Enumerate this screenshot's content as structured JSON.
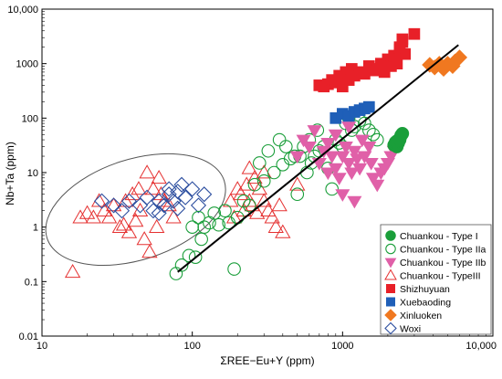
{
  "chart_data": {
    "type": "scatter",
    "xscale": "log",
    "yscale": "log",
    "xlim": [
      10,
      10000
    ],
    "ylim": [
      0.01,
      10000
    ],
    "xlabel": "ΣREE−Eu+Y (ppm)",
    "ylabel": "Nb+Ta (ppm)",
    "x_ticks": [
      "10",
      "100",
      "1000",
      "10,000"
    ],
    "y_ticks": [
      "0.01",
      "0.1",
      "1",
      "10",
      "100",
      "1000",
      "10,000"
    ],
    "grid": false,
    "legend_position": "bottom-right",
    "trend_line": {
      "x": [
        80,
        5900
      ],
      "y": [
        0.15,
        2200
      ],
      "color": "#000000"
    },
    "ellipse": {
      "label": "",
      "center": [
        42,
        2.1
      ],
      "color": "#555555"
    },
    "series": [
      {
        "name": "Chuankou - Type I",
        "marker": "circle-filled",
        "color": "#1a9e3a",
        "x": [
          2200,
          2300,
          2350,
          2400,
          2450,
          2500,
          2300,
          2250,
          2400
        ],
        "y": [
          32,
          38,
          35,
          42,
          48,
          52,
          30,
          36,
          40
        ]
      },
      {
        "name": "Chuankou - Type IIa",
        "marker": "circle-open",
        "color": "#1a9e3a",
        "x": [
          78,
          85,
          95,
          100,
          105,
          110,
          115,
          120,
          130,
          140,
          150,
          165,
          175,
          190,
          200,
          220,
          240,
          260,
          280,
          300,
          320,
          350,
          380,
          400,
          420,
          450,
          480,
          500,
          520,
          550,
          580,
          600,
          620,
          650,
          680,
          700,
          750,
          800,
          850,
          900,
          950,
          1000,
          1050,
          1100,
          1150,
          1200,
          1300,
          1400,
          1500,
          1600,
          1700
        ],
        "y": [
          0.14,
          0.2,
          0.3,
          1.0,
          0.28,
          1.5,
          0.6,
          1.0,
          1.2,
          1.8,
          1.1,
          2.0,
          1.2,
          0.17,
          1.5,
          3.0,
          2.5,
          6.0,
          15,
          7.0,
          25,
          10,
          40,
          14,
          30,
          18,
          20,
          4.0,
          20,
          30,
          10,
          40,
          15,
          20,
          60,
          25,
          30,
          12,
          5.0,
          40,
          35,
          30,
          80,
          100,
          60,
          70,
          90,
          80,
          60,
          50,
          40
        ]
      },
      {
        "name": "Chuankou - Type IIb",
        "marker": "triangle-down-filled",
        "color": "#e060a8",
        "x": [
          500,
          550,
          600,
          650,
          700,
          750,
          800,
          850,
          900,
          950,
          1000,
          1050,
          1100,
          1150,
          1200,
          1250,
          1300,
          1350,
          1400,
          1500,
          1550,
          1600,
          1700,
          1800,
          1900,
          2000,
          2100,
          2200,
          1000,
          1200,
          900,
          1100,
          800
        ],
        "y": [
          20,
          40,
          30,
          60,
          15,
          25,
          10,
          20,
          12,
          8,
          20,
          30,
          15,
          10,
          25,
          18,
          12,
          40,
          20,
          30,
          15,
          8,
          6,
          10,
          12,
          15,
          20,
          25,
          4,
          3,
          50,
          70,
          35
        ]
      },
      {
        "name": "Chuankou - TypeIII",
        "marker": "triangle-up-open",
        "color": "#e53030",
        "x": [
          16,
          18,
          20,
          22,
          24,
          26,
          28,
          30,
          33,
          36,
          40,
          42,
          45,
          50,
          55,
          60,
          62,
          65,
          70,
          75,
          48,
          52,
          58,
          38,
          44,
          35,
          180,
          190,
          200,
          210,
          220,
          230,
          240,
          250,
          260,
          270,
          280,
          300,
          320,
          340,
          360,
          380,
          400,
          240,
          300,
          500
        ],
        "y": [
          0.15,
          1.5,
          1.8,
          1.5,
          3.0,
          2.0,
          1.5,
          2.5,
          1.0,
          3.0,
          4.0,
          1.3,
          2.0,
          10,
          5.0,
          8.0,
          4.0,
          3.0,
          2.5,
          1.5,
          0.6,
          0.35,
          1.0,
          0.8,
          5.0,
          1.1,
          3.0,
          1.5,
          5.0,
          4.0,
          2.0,
          6.0,
          3.0,
          2.5,
          8.0,
          1.8,
          5.0,
          3.0,
          2.0,
          1.5,
          1.0,
          2.5,
          0.8,
          12,
          10,
          6.0
        ]
      },
      {
        "name": "Shizhuyuan",
        "marker": "square-filled",
        "color": "#e82028",
        "x": [
          700,
          750,
          800,
          850,
          900,
          950,
          1000,
          1050,
          1100,
          1150,
          1200,
          1300,
          1400,
          1500,
          1600,
          1700,
          1800,
          1900,
          2000,
          2100,
          2200,
          2300,
          2400,
          2500,
          2600,
          3000,
          2400,
          2500
        ],
        "y": [
          400,
          380,
          420,
          500,
          450,
          600,
          380,
          700,
          500,
          800,
          600,
          700,
          650,
          900,
          750,
          800,
          1000,
          700,
          1200,
          900,
          1400,
          1000,
          1800,
          2500,
          1500,
          3500,
          2000,
          2800
        ]
      },
      {
        "name": "Xuebaoding",
        "marker": "square-filled",
        "color": "#1f5fb8",
        "x": [
          900,
          1000,
          1100,
          1200,
          1300,
          1400,
          1500
        ],
        "y": [
          100,
          120,
          110,
          130,
          140,
          150,
          160
        ]
      },
      {
        "name": "Xinluoken",
        "marker": "diamond-filled",
        "color": "#f07820",
        "x": [
          3800,
          4100,
          4400,
          4700,
          5000,
          5400,
          5600,
          6000
        ],
        "y": [
          950,
          850,
          1000,
          800,
          1000,
          900,
          1100,
          1300
        ]
      },
      {
        "name": "Woxi",
        "marker": "diamond-open",
        "color": "#2d4fa0",
        "x": [
          25,
          30,
          34,
          38,
          45,
          50,
          55,
          60,
          65,
          70,
          75,
          80,
          85,
          90,
          100,
          110,
          120,
          60,
          70,
          80
        ],
        "y": [
          3.0,
          2.5,
          2.0,
          3.0,
          2.5,
          3.5,
          2.0,
          3.0,
          2.5,
          4.0,
          3.0,
          2.2,
          6.0,
          3.5,
          5.0,
          2.5,
          4.0,
          1.8,
          5.0,
          4.5
        ]
      }
    ]
  }
}
